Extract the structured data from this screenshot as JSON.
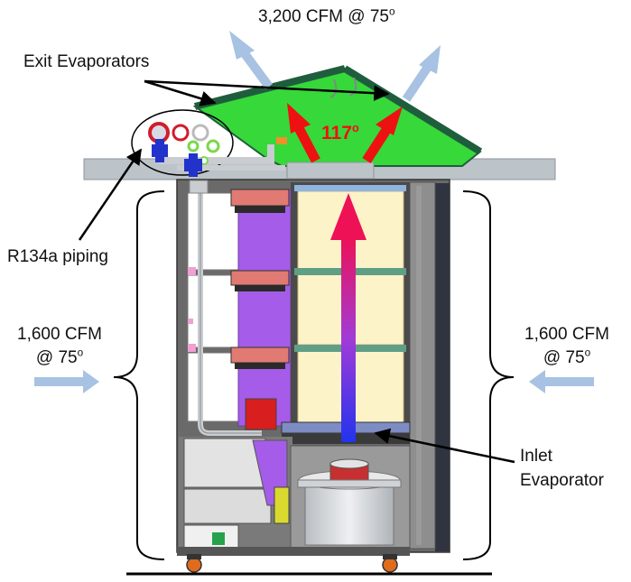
{
  "labels": {
    "top_flow_value": "3,200 CFM @ 75",
    "top_flow_deg": "o",
    "exit_evaporators": "Exit Evaporators",
    "hot_temp": "117",
    "hot_temp_deg": "o",
    "piping": "R134a piping",
    "left_flow_value": "1,600 CFM",
    "left_flow_temp": "@ 75",
    "left_flow_deg": "o",
    "right_flow_value": "1,600 CFM",
    "right_flow_temp": "@ 75",
    "right_flow_deg": "o",
    "inlet_line1": "Inlet",
    "inlet_line2": "Evaporator"
  },
  "colors": {
    "evaporator_green": "#36d83a",
    "evaporator_edge": "#1f5e3c",
    "hot_arrow": "#ee1111",
    "airflow_arrow": "#a7c2e2",
    "rack_frame": "#5c5c5c",
    "slab": "#bcc3c9",
    "server_purple": "#a55ce8",
    "cream_panel": "#fdf3c9",
    "fan_grey": "#d4d7da"
  }
}
